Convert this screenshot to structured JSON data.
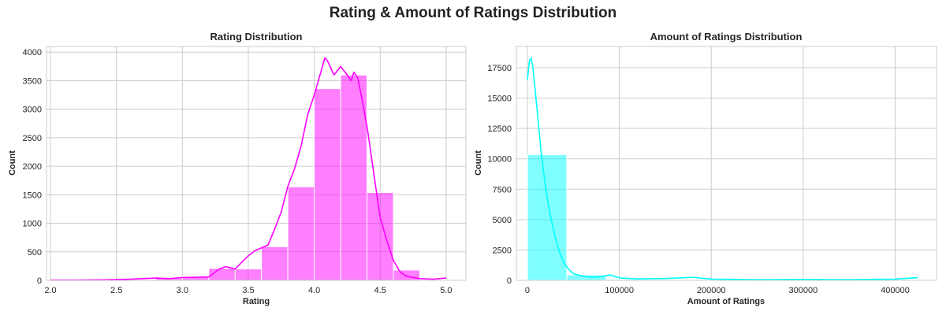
{
  "figure_title": "Rating & Amount of Ratings Distribution",
  "chart_data": [
    {
      "type": "bar",
      "subtype": "histogram_with_kde",
      "title": "Rating Distribution",
      "xlabel": "Rating",
      "ylabel": "Count",
      "xlim": [
        1.97,
        5.15
      ],
      "ylim": [
        0,
        4100
      ],
      "xticks": [
        2.0,
        2.5,
        3.0,
        3.5,
        4.0,
        4.5,
        5.0
      ],
      "yticks": [
        0,
        500,
        1000,
        1500,
        2000,
        2500,
        3000,
        3500,
        4000
      ],
      "xtick_labels": [
        "2.0",
        "2.5",
        "3.0",
        "3.5",
        "4.0",
        "4.5",
        "5.0"
      ],
      "ytick_labels": [
        "0",
        "500",
        "1000",
        "1500",
        "2000",
        "2500",
        "3000",
        "3500",
        "4000"
      ],
      "grid": true,
      "color": "#ff00ff",
      "bars": [
        {
          "x0": 2.0,
          "x1": 2.2,
          "value": 5
        },
        {
          "x0": 2.2,
          "x1": 2.4,
          "value": 5
        },
        {
          "x0": 2.4,
          "x1": 2.6,
          "value": 10
        },
        {
          "x0": 2.6,
          "x1": 2.8,
          "value": 15
        },
        {
          "x0": 2.8,
          "x1": 3.0,
          "value": 40
        },
        {
          "x0": 3.0,
          "x1": 3.2,
          "value": 60
        },
        {
          "x0": 3.2,
          "x1": 3.4,
          "value": 210
        },
        {
          "x0": 3.4,
          "x1": 3.6,
          "value": 200
        },
        {
          "x0": 3.6,
          "x1": 3.8,
          "value": 590
        },
        {
          "x0": 3.8,
          "x1": 4.0,
          "value": 1640
        },
        {
          "x0": 4.0,
          "x1": 4.2,
          "value": 3360
        },
        {
          "x0": 4.2,
          "x1": 4.4,
          "value": 3600
        },
        {
          "x0": 4.4,
          "x1": 4.6,
          "value": 1540
        },
        {
          "x0": 4.6,
          "x1": 4.8,
          "value": 180
        },
        {
          "x0": 4.8,
          "x1": 5.0,
          "value": 10
        }
      ],
      "kde": {
        "x": [
          2.0,
          2.2,
          2.4,
          2.6,
          2.8,
          2.9,
          3.0,
          3.1,
          3.2,
          3.28,
          3.33,
          3.4,
          3.5,
          3.55,
          3.6,
          3.65,
          3.7,
          3.75,
          3.8,
          3.85,
          3.9,
          3.95,
          4.0,
          4.05,
          4.08,
          4.1,
          4.15,
          4.2,
          4.25,
          4.28,
          4.3,
          4.33,
          4.36,
          4.4,
          4.45,
          4.5,
          4.55,
          4.6,
          4.65,
          4.7,
          4.8,
          4.9,
          5.0
        ],
        "y": [
          5,
          5,
          10,
          20,
          40,
          30,
          50,
          55,
          60,
          200,
          240,
          200,
          430,
          520,
          570,
          620,
          900,
          1200,
          1650,
          1950,
          2350,
          2900,
          3250,
          3650,
          3900,
          3850,
          3600,
          3750,
          3600,
          3500,
          3650,
          3550,
          3200,
          2700,
          1900,
          1100,
          700,
          350,
          150,
          70,
          30,
          20,
          40
        ]
      }
    },
    {
      "type": "bar",
      "subtype": "histogram_with_kde",
      "title": "Amount of Ratings Distribution",
      "xlabel": "Amount of Ratings",
      "ylabel": "Count",
      "xlim": [
        -12000,
        445000
      ],
      "ylim": [
        0,
        19250
      ],
      "xticks": [
        0,
        100000,
        200000,
        300000,
        400000
      ],
      "yticks": [
        0,
        2500,
        5000,
        7500,
        10000,
        12500,
        15000,
        17500
      ],
      "xtick_labels": [
        "0",
        "100000",
        "200000",
        "300000",
        "400000"
      ],
      "ytick_labels": [
        "0",
        "2500",
        "5000",
        "7500",
        "10000",
        "12500",
        "15000",
        "17500"
      ],
      "grid": true,
      "color": "#00ffff",
      "bars": [
        {
          "x0": 0,
          "x1": 42800,
          "value": 10350
        },
        {
          "x0": 42800,
          "x1": 85600,
          "value": 450
        },
        {
          "x0": 85600,
          "x1": 128400,
          "value": 80
        },
        {
          "x0": 128400,
          "x1": 171200,
          "value": 30
        },
        {
          "x0": 171200,
          "x1": 214000,
          "value": 20
        },
        {
          "x0": 214000,
          "x1": 256800,
          "value": 10
        },
        {
          "x0": 256800,
          "x1": 299600,
          "value": 8
        },
        {
          "x0": 299600,
          "x1": 342400,
          "value": 5
        },
        {
          "x0": 342400,
          "x1": 385200,
          "value": 5
        },
        {
          "x0": 385200,
          "x1": 428000,
          "value": 5
        }
      ],
      "kde": {
        "x": [
          0,
          2000,
          4000,
          6000,
          10000,
          15000,
          20000,
          25000,
          30000,
          35000,
          40000,
          45000,
          50000,
          60000,
          70000,
          80000,
          90000,
          100000,
          120000,
          150000,
          180000,
          200000,
          250000,
          300000,
          350000,
          400000,
          425000
        ],
        "y": [
          16500,
          18000,
          18300,
          17500,
          14500,
          10500,
          7500,
          5300,
          3600,
          2300,
          1400,
          900,
          550,
          350,
          250,
          300,
          450,
          200,
          120,
          150,
          250,
          100,
          60,
          80,
          60,
          100,
          220
        ]
      }
    }
  ]
}
